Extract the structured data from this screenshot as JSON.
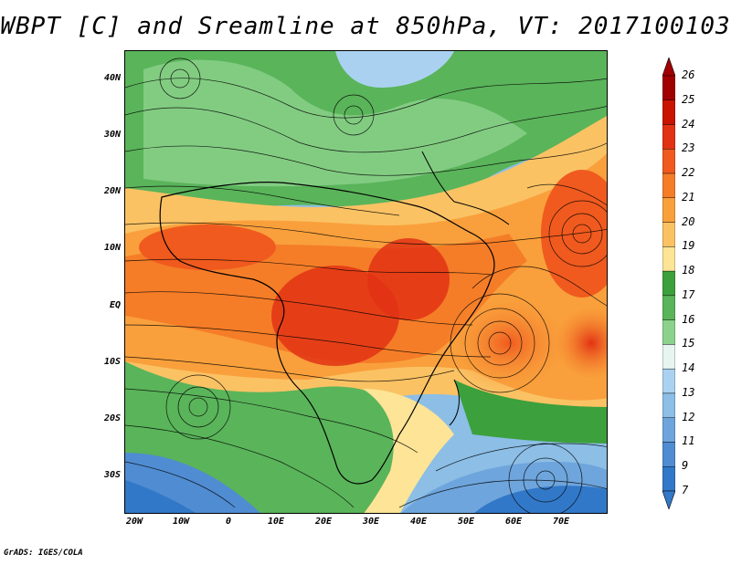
{
  "title": "WBPT [C] and Sreamline at 850hPa, VT: 2017100103",
  "footer": "GrADS: IGES/COLA",
  "map": {
    "lat_labels": [
      "40N",
      "30N",
      "20N",
      "10N",
      "EQ",
      "10S",
      "20S",
      "30S"
    ],
    "lat_values": [
      40,
      30,
      20,
      10,
      0,
      -10,
      -20,
      -30
    ],
    "lon_labels": [
      "20W",
      "10W",
      "0",
      "10E",
      "20E",
      "30E",
      "40E",
      "50E",
      "60E",
      "70E"
    ],
    "lon_values": [
      -20,
      -10,
      0,
      10,
      20,
      30,
      40,
      50,
      60,
      70
    ],
    "lon_range": [
      -22,
      80
    ],
    "lat_range": [
      -36,
      45
    ],
    "variable": "WBPT [C]",
    "level": "850hPa"
  },
  "colorbar": {
    "labels": [
      "26",
      "25",
      "24",
      "23",
      "22",
      "21",
      "20",
      "19",
      "18",
      "17",
      "16",
      "15",
      "14",
      "13",
      "12",
      "11",
      "9",
      "7"
    ],
    "colors": [
      "#a00000",
      "#c81400",
      "#e23214",
      "#f05a1e",
      "#f57d28",
      "#f9a03c",
      "#fbc264",
      "#fde496",
      "#3ca03c",
      "#5ab45a",
      "#8cd28c",
      "#e6f5f0",
      "#aad2f0",
      "#8cbee6",
      "#6ea5dc",
      "#508cd2",
      "#3278c8"
    ],
    "top_arrow_color": "#a00000",
    "bottom_arrow_color": "#3278c8"
  }
}
